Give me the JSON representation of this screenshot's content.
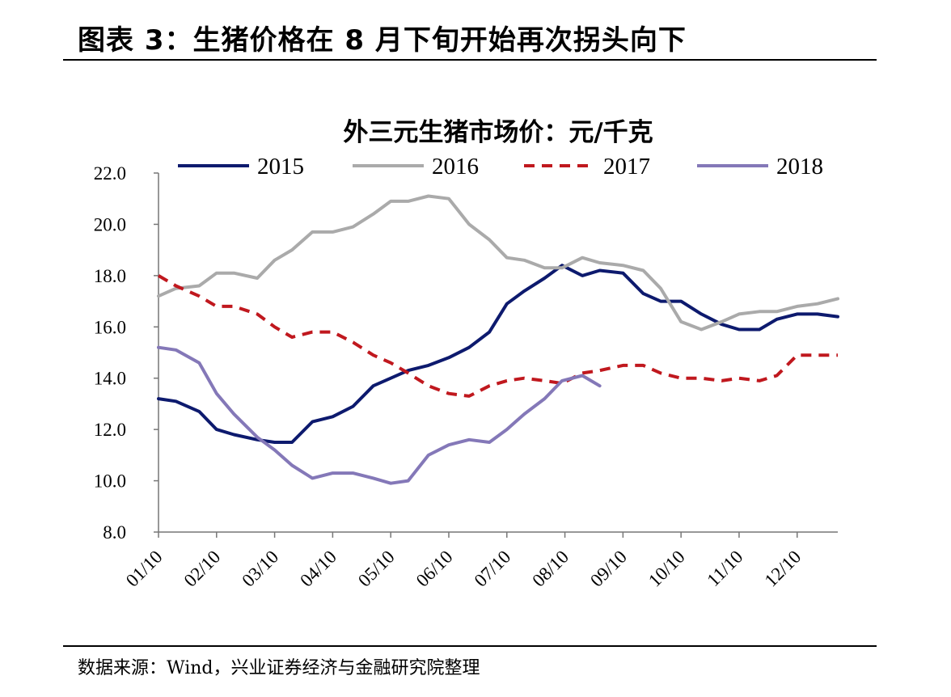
{
  "figure_title": "图表 3：生猪价格在 8 月下旬开始再次拐头向下",
  "source_note": "数据来源：Wind，兴业证券经济与金融研究院整理",
  "chart_data": {
    "type": "line",
    "title": "外三元生猪市场价：元/千克",
    "xlabel": "",
    "ylabel": "",
    "ylim": [
      8,
      22
    ],
    "yticks": [
      "8.0",
      "10.0",
      "12.0",
      "14.0",
      "16.0",
      "18.0",
      "20.0",
      "22.0"
    ],
    "xlim": [
      0,
      11.7
    ],
    "xticks": [
      "01/10",
      "02/10",
      "03/10",
      "04/10",
      "05/10",
      "06/10",
      "07/10",
      "08/10",
      "09/10",
      "10/10",
      "11/10",
      "12/10"
    ],
    "legend_position": "top",
    "grid": false,
    "series": [
      {
        "name": "2015",
        "color": "#0d1a6e",
        "dash": "solid",
        "x": [
          0,
          0.3,
          0.7,
          1.0,
          1.3,
          1.7,
          2.0,
          2.3,
          2.65,
          3.0,
          3.35,
          3.7,
          4.0,
          4.3,
          4.65,
          5.0,
          5.35,
          5.7,
          6.0,
          6.3,
          6.65,
          6.95,
          7.3,
          7.6,
          8.0,
          8.35,
          8.65,
          9.0,
          9.35,
          9.7,
          10.0,
          10.35,
          10.65,
          11.0,
          11.35,
          11.7
        ],
        "y": [
          13.2,
          13.1,
          12.7,
          12.0,
          11.8,
          11.6,
          11.5,
          11.5,
          12.3,
          12.5,
          12.9,
          13.7,
          14.0,
          14.3,
          14.5,
          14.8,
          15.2,
          15.8,
          16.9,
          17.4,
          17.9,
          18.4,
          18.0,
          18.2,
          18.1,
          17.3,
          17.0,
          17.0,
          16.5,
          16.1,
          15.9,
          15.9,
          16.3,
          16.5,
          16.5,
          16.4
        ]
      },
      {
        "name": "2016",
        "color": "#aaaaaa",
        "dash": "solid",
        "x": [
          0,
          0.3,
          0.7,
          1.0,
          1.3,
          1.7,
          2.0,
          2.3,
          2.65,
          3.0,
          3.35,
          3.7,
          4.0,
          4.3,
          4.65,
          5.0,
          5.35,
          5.7,
          6.0,
          6.3,
          6.65,
          6.95,
          7.3,
          7.6,
          8.0,
          8.35,
          8.65,
          9.0,
          9.35,
          9.7,
          10.0,
          10.35,
          10.65,
          11.0,
          11.35,
          11.7
        ],
        "y": [
          17.2,
          17.5,
          17.6,
          18.1,
          18.1,
          17.9,
          18.6,
          19.0,
          19.7,
          19.7,
          19.9,
          20.4,
          20.9,
          20.9,
          21.1,
          21.0,
          20.0,
          19.4,
          18.7,
          18.6,
          18.3,
          18.3,
          18.7,
          18.5,
          18.4,
          18.2,
          17.5,
          16.2,
          15.9,
          16.2,
          16.5,
          16.6,
          16.6,
          16.8,
          16.9,
          17.1
        ]
      },
      {
        "name": "2017",
        "color": "#c0181e",
        "dash": "dashed",
        "x": [
          0,
          0.3,
          0.7,
          1.0,
          1.3,
          1.7,
          2.0,
          2.3,
          2.65,
          3.0,
          3.35,
          3.7,
          4.0,
          4.3,
          4.65,
          5.0,
          5.35,
          5.7,
          6.0,
          6.3,
          6.65,
          6.95,
          7.3,
          7.6,
          8.0,
          8.35,
          8.65,
          9.0,
          9.35,
          9.7,
          10.0,
          10.35,
          10.65,
          11.0,
          11.35,
          11.7
        ],
        "y": [
          18.0,
          17.6,
          17.2,
          16.8,
          16.8,
          16.5,
          16.0,
          15.6,
          15.8,
          15.8,
          15.4,
          14.9,
          14.6,
          14.2,
          13.7,
          13.4,
          13.3,
          13.7,
          13.9,
          14.0,
          13.9,
          13.8,
          14.2,
          14.3,
          14.5,
          14.5,
          14.2,
          14.0,
          14.0,
          13.9,
          14.0,
          13.9,
          14.1,
          14.9,
          14.9,
          14.9
        ]
      },
      {
        "name": "2018",
        "color": "#8478b8",
        "dash": "solid",
        "x": [
          0,
          0.3,
          0.7,
          1.0,
          1.3,
          1.7,
          2.0,
          2.3,
          2.65,
          3.0,
          3.35,
          3.7,
          4.0,
          4.3,
          4.65,
          5.0,
          5.35,
          5.7,
          6.0,
          6.3,
          6.65,
          6.95,
          7.3,
          7.6
        ],
        "y": [
          15.2,
          15.1,
          14.6,
          13.4,
          12.6,
          11.7,
          11.2,
          10.6,
          10.1,
          10.3,
          10.3,
          10.1,
          9.9,
          10.0,
          11.0,
          11.4,
          11.6,
          11.5,
          12.0,
          12.6,
          13.2,
          13.9,
          14.1,
          13.7
        ]
      }
    ]
  }
}
